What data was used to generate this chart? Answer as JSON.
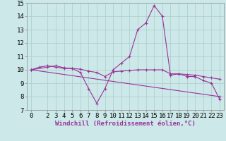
{
  "line1_x": [
    0,
    1,
    2,
    3,
    4,
    5,
    6,
    7,
    8,
    9,
    10,
    11,
    12,
    13,
    14,
    15,
    16,
    17,
    18,
    19,
    20,
    21,
    22,
    23
  ],
  "line1_y": [
    10.0,
    10.2,
    10.3,
    10.2,
    10.1,
    10.1,
    9.8,
    8.6,
    7.5,
    8.6,
    10.0,
    10.5,
    11.0,
    13.0,
    13.5,
    14.8,
    14.0,
    9.6,
    9.7,
    9.5,
    9.5,
    9.2,
    9.0,
    7.8
  ],
  "line2_x": [
    0,
    2,
    3,
    4,
    5,
    6,
    7,
    8,
    9,
    10,
    11,
    12,
    13,
    14,
    15,
    16,
    17,
    18,
    19,
    20,
    21,
    22,
    23
  ],
  "line2_y": [
    10.0,
    10.2,
    10.3,
    10.15,
    10.1,
    10.05,
    9.9,
    9.8,
    9.5,
    9.85,
    9.9,
    9.95,
    10.0,
    10.0,
    10.0,
    10.0,
    9.7,
    9.7,
    9.65,
    9.6,
    9.5,
    9.4,
    9.3
  ],
  "line3_x": [
    0,
    23
  ],
  "line3_y": [
    10.0,
    8.0
  ],
  "color": "#993399",
  "bg_color": "#cce8e8",
  "grid_color": "#aacccc",
  "xlabel": "Windchill (Refroidissement éolien,°C)",
  "xlim": [
    -0.5,
    23.5
  ],
  "ylim": [
    7,
    15
  ],
  "yticks": [
    7,
    8,
    9,
    10,
    11,
    12,
    13,
    14,
    15
  ],
  "xticks": [
    0,
    2,
    3,
    4,
    5,
    6,
    7,
    8,
    9,
    10,
    11,
    12,
    13,
    14,
    15,
    16,
    17,
    18,
    19,
    20,
    21,
    22,
    23
  ],
  "xlabel_fontsize": 6.5,
  "tick_fontsize": 6.5
}
